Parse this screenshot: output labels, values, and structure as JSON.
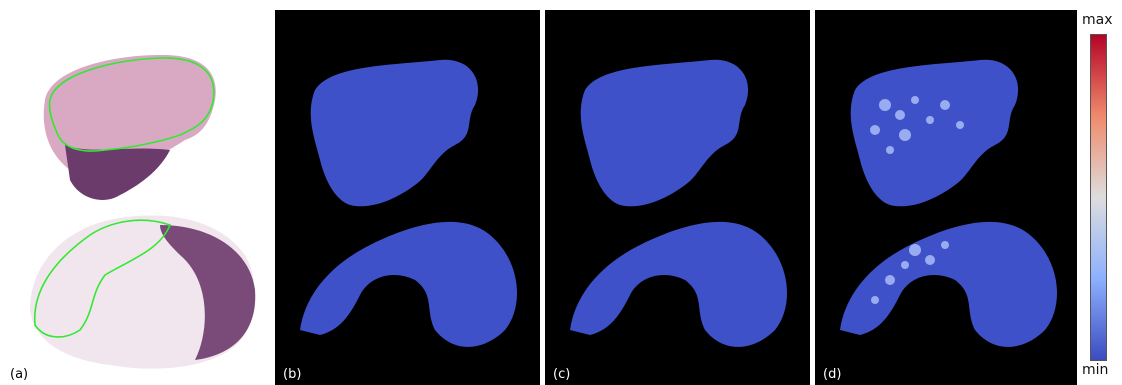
{
  "panels": [
    {
      "label": "(a)",
      "kind": "histology"
    },
    {
      "label": "(b)",
      "kind": "mask"
    },
    {
      "label": "(c)",
      "kind": "mask"
    },
    {
      "label": "(d)",
      "kind": "mask-speckled"
    }
  ],
  "colorbar": {
    "max_label": "max",
    "min_label": "min",
    "colors": [
      "#b40426",
      "#f08a6c",
      "#dddddd",
      "#8db0fe",
      "#3b4cc0"
    ]
  },
  "colors": {
    "mask_fill": "#3f51c9",
    "background": "#000000",
    "tissue_light": "#f0e4ec",
    "tissue_dark": "#7a4a78",
    "outline": "#32e832"
  }
}
